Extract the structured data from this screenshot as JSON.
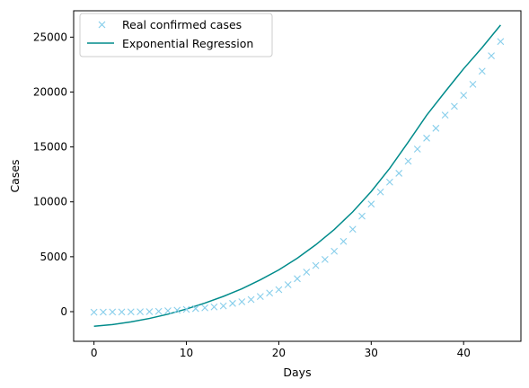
{
  "chart_data": {
    "type": "scatter",
    "xlabel": "Days",
    "ylabel": "Cases",
    "xlim": [
      -2.2,
      46.2
    ],
    "ylim": [
      -2700,
      27400
    ],
    "xticks": [
      0,
      10,
      20,
      30,
      40
    ],
    "yticks": [
      0,
      5000,
      10000,
      15000,
      20000,
      25000
    ],
    "grid": false,
    "legend_position": "top-left",
    "series": [
      {
        "name": "Real confirmed cases",
        "kind": "marker-x",
        "color": "#87ceeb",
        "x": [
          0,
          1,
          2,
          3,
          4,
          5,
          6,
          7,
          8,
          9,
          10,
          11,
          12,
          13,
          14,
          15,
          16,
          17,
          18,
          19,
          20,
          21,
          22,
          23,
          24,
          25,
          26,
          27,
          28,
          29,
          30,
          31,
          32,
          33,
          34,
          35,
          36,
          37,
          38,
          39,
          40,
          41,
          42,
          43,
          44
        ],
        "y": [
          -50,
          -40,
          -30,
          -30,
          -20,
          -10,
          0,
          30,
          80,
          130,
          200,
          280,
          350,
          430,
          520,
          750,
          900,
          1100,
          1380,
          1700,
          2000,
          2450,
          3000,
          3600,
          4200,
          4750,
          5500,
          6400,
          7500,
          8700,
          9800,
          10900,
          11800,
          12600,
          13700,
          14800,
          15800,
          16700,
          17900,
          18700,
          19700,
          20700,
          21900,
          23300,
          24600
        ]
      },
      {
        "name": "Exponential Regression",
        "kind": "line",
        "color": "#008b8b",
        "x": [
          0,
          2,
          4,
          6,
          8,
          10,
          12,
          14,
          16,
          18,
          20,
          22,
          24,
          26,
          28,
          30,
          32,
          34,
          36,
          38,
          40,
          42,
          44
        ],
        "y": [
          -1330,
          -1180,
          -930,
          -620,
          -230,
          240,
          780,
          1390,
          2080,
          2900,
          3800,
          4870,
          6090,
          7480,
          9090,
          10940,
          13050,
          15430,
          17890,
          20030,
          22120,
          24050,
          26100
        ]
      }
    ]
  }
}
